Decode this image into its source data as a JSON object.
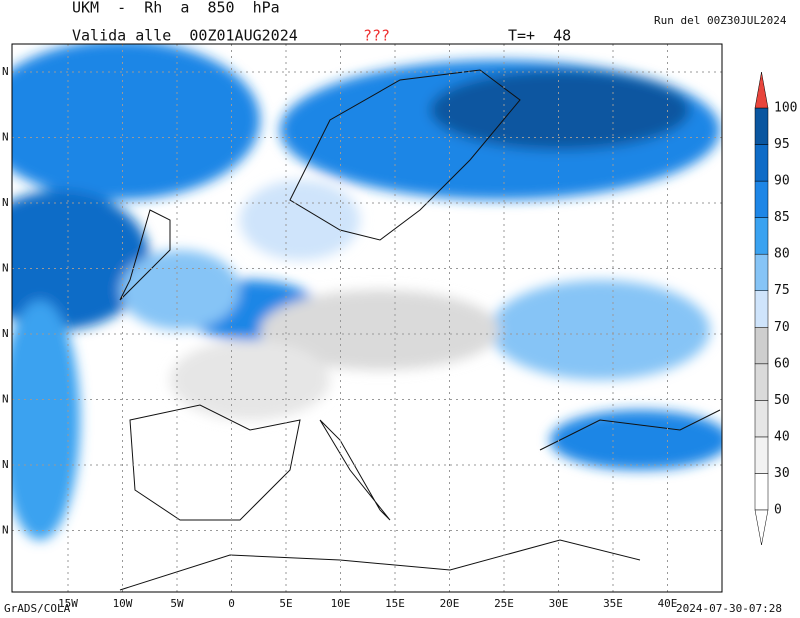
{
  "header": {
    "title": "UKM  -  Rh  a  850  hPa",
    "valid": "Valida alle  00Z01AUG2024",
    "flag": "???",
    "step": "T=+  48",
    "run": "Run del 00Z30JUL2024"
  },
  "map": {
    "lon_labels": [
      "15W",
      "10W",
      "5W",
      "0",
      "5E",
      "10E",
      "15E",
      "20E",
      "25E",
      "30E",
      "35E",
      "40E"
    ],
    "lat_labels": [
      "N",
      "N",
      "N",
      "N",
      "N",
      "N",
      "N",
      "N"
    ]
  },
  "colorbar": {
    "levels": [
      0,
      30,
      40,
      50,
      60,
      70,
      75,
      80,
      85,
      90,
      95,
      100
    ],
    "colors": [
      "#ffffff",
      "#f2f2f2",
      "#e6e6e6",
      "#dadada",
      "#cecece",
      "#cfe4fb",
      "#86c4f6",
      "#3aa2f0",
      "#1e86e6",
      "#0f6cc7",
      "#0a56a0"
    ],
    "over_color": "#e8453c"
  },
  "footer": {
    "left": "GrADS/COLA",
    "right": "2024-07-30-07:28"
  }
}
